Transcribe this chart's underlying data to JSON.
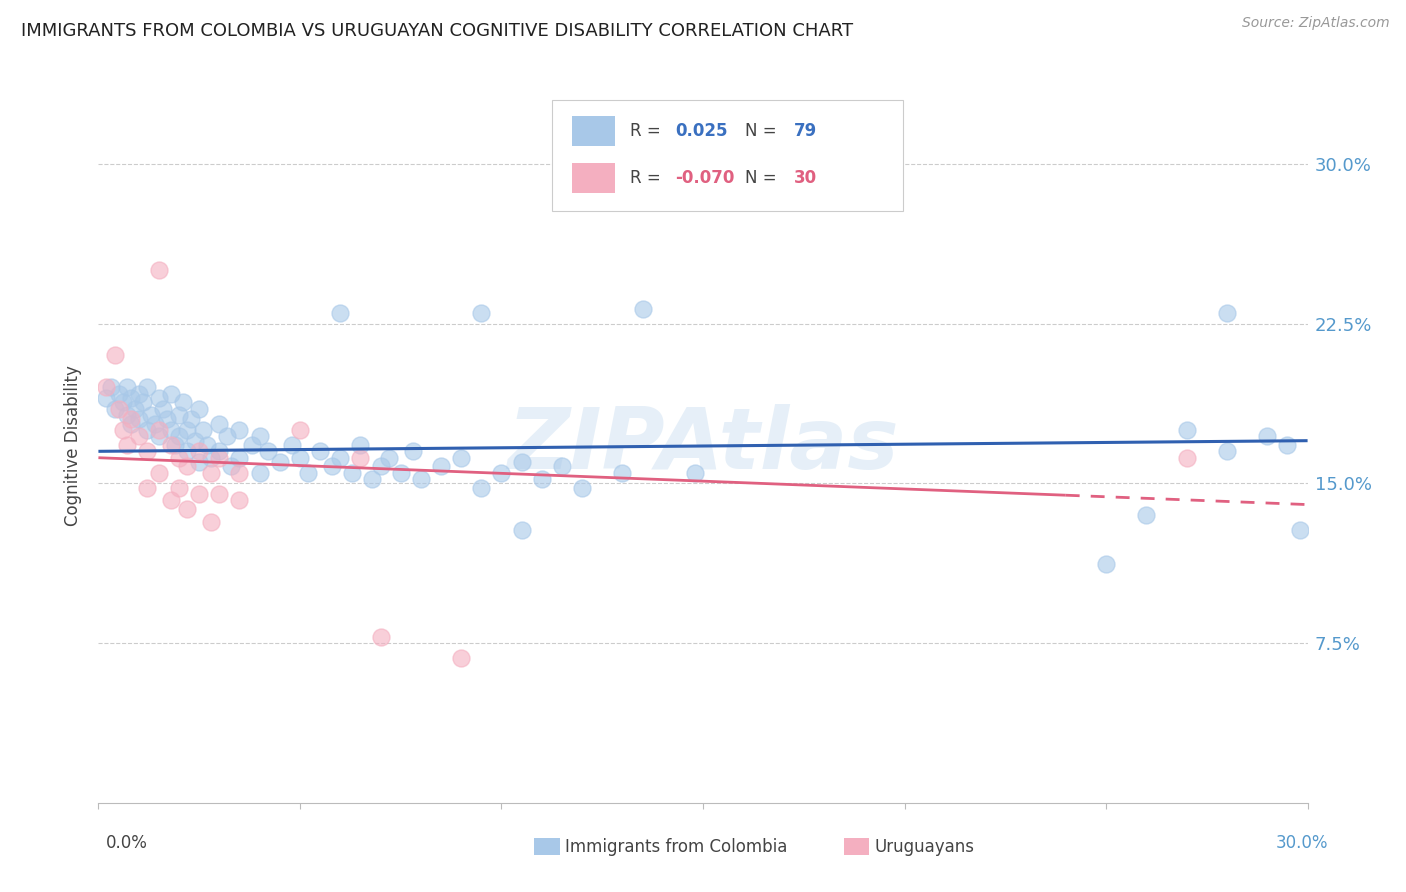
{
  "title": "IMMIGRANTS FROM COLOMBIA VS URUGUAYAN COGNITIVE DISABILITY CORRELATION CHART",
  "source": "Source: ZipAtlas.com",
  "ylabel": "Cognitive Disability",
  "yticks": [
    0.0,
    0.075,
    0.15,
    0.225,
    0.3
  ],
  "ytick_labels": [
    "",
    "7.5%",
    "15.0%",
    "22.5%",
    "30.0%"
  ],
  "xlim": [
    0.0,
    0.3
  ],
  "ylim": [
    0.0,
    0.335
  ],
  "watermark": "ZIPAtlas",
  "blue_color": "#a8c8e8",
  "pink_color": "#f4afc0",
  "blue_line_color": "#3060b0",
  "pink_line_color": "#e06080",
  "blue_line_y0": 0.165,
  "blue_line_y1": 0.17,
  "pink_line_y0": 0.162,
  "pink_line_y1": 0.14,
  "blue_scatter": [
    [
      0.002,
      0.19
    ],
    [
      0.003,
      0.195
    ],
    [
      0.004,
      0.185
    ],
    [
      0.005,
      0.192
    ],
    [
      0.006,
      0.188
    ],
    [
      0.007,
      0.182
    ],
    [
      0.007,
      0.195
    ],
    [
      0.008,
      0.178
    ],
    [
      0.008,
      0.19
    ],
    [
      0.009,
      0.185
    ],
    [
      0.01,
      0.18
    ],
    [
      0.01,
      0.192
    ],
    [
      0.011,
      0.188
    ],
    [
      0.012,
      0.195
    ],
    [
      0.012,
      0.175
    ],
    [
      0.013,
      0.182
    ],
    [
      0.014,
      0.178
    ],
    [
      0.015,
      0.19
    ],
    [
      0.015,
      0.172
    ],
    [
      0.016,
      0.185
    ],
    [
      0.017,
      0.18
    ],
    [
      0.018,
      0.175
    ],
    [
      0.018,
      0.192
    ],
    [
      0.019,
      0.168
    ],
    [
      0.02,
      0.182
    ],
    [
      0.02,
      0.172
    ],
    [
      0.021,
      0.188
    ],
    [
      0.022,
      0.175
    ],
    [
      0.022,
      0.165
    ],
    [
      0.023,
      0.18
    ],
    [
      0.024,
      0.17
    ],
    [
      0.025,
      0.185
    ],
    [
      0.025,
      0.16
    ],
    [
      0.026,
      0.175
    ],
    [
      0.027,
      0.168
    ],
    [
      0.028,
      0.162
    ],
    [
      0.03,
      0.178
    ],
    [
      0.03,
      0.165
    ],
    [
      0.032,
      0.172
    ],
    [
      0.033,
      0.158
    ],
    [
      0.035,
      0.175
    ],
    [
      0.035,
      0.162
    ],
    [
      0.038,
      0.168
    ],
    [
      0.04,
      0.172
    ],
    [
      0.04,
      0.155
    ],
    [
      0.042,
      0.165
    ],
    [
      0.045,
      0.16
    ],
    [
      0.048,
      0.168
    ],
    [
      0.05,
      0.162
    ],
    [
      0.052,
      0.155
    ],
    [
      0.055,
      0.165
    ],
    [
      0.058,
      0.158
    ],
    [
      0.06,
      0.162
    ],
    [
      0.063,
      0.155
    ],
    [
      0.065,
      0.168
    ],
    [
      0.068,
      0.152
    ],
    [
      0.07,
      0.158
    ],
    [
      0.072,
      0.162
    ],
    [
      0.075,
      0.155
    ],
    [
      0.078,
      0.165
    ],
    [
      0.08,
      0.152
    ],
    [
      0.085,
      0.158
    ],
    [
      0.09,
      0.162
    ],
    [
      0.095,
      0.148
    ],
    [
      0.1,
      0.155
    ],
    [
      0.105,
      0.16
    ],
    [
      0.11,
      0.152
    ],
    [
      0.115,
      0.158
    ],
    [
      0.12,
      0.148
    ],
    [
      0.13,
      0.155
    ],
    [
      0.135,
      0.232
    ],
    [
      0.148,
      0.155
    ],
    [
      0.095,
      0.23
    ],
    [
      0.105,
      0.128
    ],
    [
      0.25,
      0.112
    ],
    [
      0.26,
      0.135
    ],
    [
      0.27,
      0.175
    ],
    [
      0.28,
      0.165
    ],
    [
      0.29,
      0.172
    ],
    [
      0.295,
      0.168
    ],
    [
      0.298,
      0.128
    ],
    [
      0.06,
      0.23
    ],
    [
      0.28,
      0.23
    ]
  ],
  "pink_scatter": [
    [
      0.002,
      0.195
    ],
    [
      0.004,
      0.21
    ],
    [
      0.005,
      0.185
    ],
    [
      0.006,
      0.175
    ],
    [
      0.007,
      0.168
    ],
    [
      0.008,
      0.18
    ],
    [
      0.01,
      0.172
    ],
    [
      0.012,
      0.165
    ],
    [
      0.012,
      0.148
    ],
    [
      0.015,
      0.175
    ],
    [
      0.015,
      0.155
    ],
    [
      0.018,
      0.168
    ],
    [
      0.018,
      0.142
    ],
    [
      0.02,
      0.162
    ],
    [
      0.02,
      0.148
    ],
    [
      0.022,
      0.158
    ],
    [
      0.022,
      0.138
    ],
    [
      0.025,
      0.165
    ],
    [
      0.025,
      0.145
    ],
    [
      0.028,
      0.155
    ],
    [
      0.028,
      0.132
    ],
    [
      0.03,
      0.162
    ],
    [
      0.03,
      0.145
    ],
    [
      0.035,
      0.155
    ],
    [
      0.035,
      0.142
    ],
    [
      0.05,
      0.175
    ],
    [
      0.065,
      0.162
    ],
    [
      0.27,
      0.162
    ],
    [
      0.07,
      0.078
    ],
    [
      0.09,
      0.068
    ],
    [
      0.015,
      0.25
    ]
  ]
}
